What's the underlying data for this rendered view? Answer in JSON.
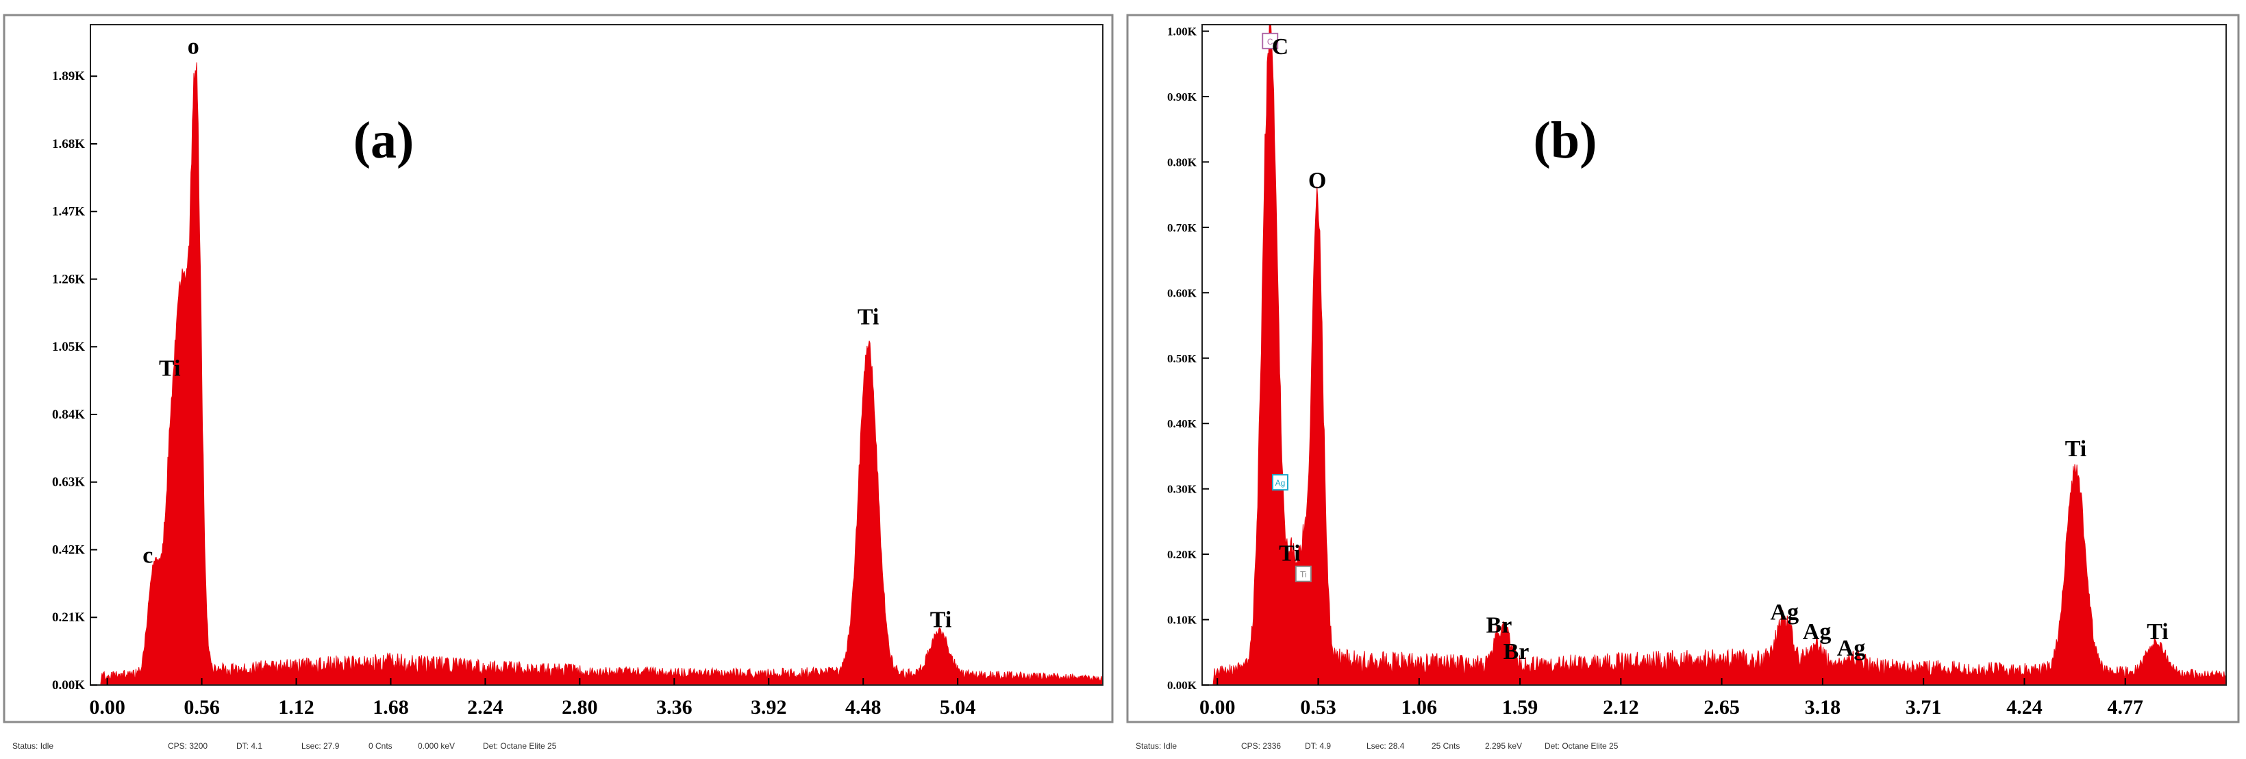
{
  "colors": {
    "spectrum": "#e8000b",
    "tick": "#000000",
    "frame": "#8a8a8a"
  },
  "chart_data": [
    {
      "type": "area",
      "panel_label": "(a)",
      "xlim": [
        -0.1,
        5.9
      ],
      "ylim": [
        0,
        2.05
      ],
      "x_ticks": [
        0.0,
        0.56,
        1.12,
        1.68,
        2.24,
        2.8,
        3.36,
        3.92,
        4.48,
        5.04
      ],
      "x_tick_labels": [
        "0.00",
        "0.56",
        "1.12",
        "1.68",
        "2.24",
        "2.80",
        "3.36",
        "3.92",
        "4.48",
        "5.04"
      ],
      "y_ticks": [
        0.0,
        0.21,
        0.42,
        0.63,
        0.84,
        1.05,
        1.26,
        1.47,
        1.68,
        1.89
      ],
      "y_tick_labels": [
        "0.00K",
        "0.21K",
        "0.42K",
        "0.63K",
        "0.84K",
        "1.05K",
        "1.26K",
        "1.47K",
        "1.68K",
        "1.89K"
      ],
      "baseline": 0.03,
      "continuum": [
        [
          0.05,
          0.03
        ],
        [
          0.6,
          0.045
        ],
        [
          1.2,
          0.06
        ],
        [
          1.7,
          0.07
        ],
        [
          2.2,
          0.055
        ],
        [
          3.0,
          0.04
        ],
        [
          3.9,
          0.035
        ],
        [
          4.3,
          0.04
        ],
        [
          5.3,
          0.03
        ],
        [
          5.9,
          0.02
        ]
      ],
      "peaks": [
        {
          "label": "C",
          "energy": 0.277,
          "height": 0.33,
          "width": 0.035
        },
        {
          "label": "Ti",
          "energy": 0.395,
          "height": 0.89,
          "width": 0.045
        },
        {
          "label": "",
          "energy": 0.455,
          "height": 0.8,
          "width": 0.03
        },
        {
          "label": "O",
          "energy": 0.525,
          "height": 1.89,
          "width": 0.03
        },
        {
          "label": "Ti",
          "energy": 4.51,
          "height": 1.05,
          "width": 0.055
        },
        {
          "label": "Ti",
          "energy": 4.93,
          "height": 0.14,
          "width": 0.055
        }
      ],
      "peak_labels": [
        {
          "text": "c",
          "x": 0.24,
          "y": 0.38
        },
        {
          "text": "Ti",
          "x": 0.37,
          "y": 0.96
        },
        {
          "text": "o",
          "x": 0.51,
          "y": 1.96
        },
        {
          "text": "Ti",
          "x": 4.51,
          "y": 1.12
        },
        {
          "text": "Ti",
          "x": 4.94,
          "y": 0.18
        }
      ],
      "status": {
        "state": "Status: Idle",
        "cps": "CPS: 3200",
        "dt": "DT: 4.1",
        "lsec": "Lsec: 27.9",
        "cnts": "0 Cnts",
        "kev": "0.000 keV",
        "det": "Det: Octane Elite 25"
      }
    },
    {
      "type": "area",
      "panel_label": "(b)",
      "xlim": [
        -0.08,
        5.3
      ],
      "ylim": [
        0,
        1.01
      ],
      "x_ticks": [
        0.0,
        0.53,
        1.06,
        1.59,
        2.12,
        2.65,
        3.18,
        3.71,
        4.24,
        4.77
      ],
      "x_tick_labels": [
        "0.00",
        "0.53",
        "1.06",
        "1.59",
        "2.12",
        "2.65",
        "3.18",
        "3.71",
        "4.24",
        "4.77"
      ],
      "y_ticks": [
        0.0,
        0.1,
        0.2,
        0.3,
        0.4,
        0.5,
        0.6,
        0.7,
        0.8,
        0.9,
        1.0
      ],
      "y_tick_labels": [
        "0.00K",
        "0.10K",
        "0.20K",
        "0.30K",
        "0.40K",
        "0.50K",
        "0.60K",
        "0.70K",
        "0.80K",
        "0.90K",
        "1.00K"
      ],
      "baseline": 0.02,
      "continuum": [
        [
          0.0,
          0.02
        ],
        [
          0.5,
          0.04
        ],
        [
          1.0,
          0.035
        ],
        [
          1.6,
          0.03
        ],
        [
          2.2,
          0.035
        ],
        [
          2.7,
          0.04
        ],
        [
          3.2,
          0.03
        ],
        [
          4.0,
          0.025
        ],
        [
          4.8,
          0.02
        ],
        [
          5.3,
          0.015
        ]
      ],
      "peaks": [
        {
          "label": "C",
          "energy": 0.277,
          "height": 1.01,
          "width": 0.04
        },
        {
          "label": "Ti",
          "energy": 0.395,
          "height": 0.16,
          "width": 0.03
        },
        {
          "label": "",
          "energy": 0.452,
          "height": 0.14,
          "width": 0.02
        },
        {
          "label": "O",
          "energy": 0.525,
          "height": 0.73,
          "width": 0.03
        },
        {
          "label": "Br",
          "energy": 1.48,
          "height": 0.05,
          "width": 0.03
        },
        {
          "label": "Br",
          "energy": 1.53,
          "height": 0.03,
          "width": 0.03
        },
        {
          "label": "Ag",
          "energy": 2.98,
          "height": 0.07,
          "width": 0.04
        },
        {
          "label": "Ag",
          "energy": 3.15,
          "height": 0.03,
          "width": 0.04
        },
        {
          "label": "Ag",
          "energy": 3.35,
          "height": 0.015,
          "width": 0.04
        },
        {
          "label": "Ti",
          "energy": 4.51,
          "height": 0.32,
          "width": 0.05
        },
        {
          "label": "Ti",
          "energy": 4.93,
          "height": 0.05,
          "width": 0.05
        }
      ],
      "peak_labels": [
        {
          "text": "C",
          "x": 0.33,
          "y": 0.965
        },
        {
          "text": "O",
          "x": 0.525,
          "y": 0.76
        },
        {
          "text": "Ti",
          "x": 0.38,
          "y": 0.19
        },
        {
          "text": "Br",
          "x": 1.48,
          "y": 0.08
        },
        {
          "text": "Br",
          "x": 1.57,
          "y": 0.04
        },
        {
          "text": "Ag",
          "x": 2.98,
          "y": 0.1
        },
        {
          "text": "Ag",
          "x": 3.15,
          "y": 0.07
        },
        {
          "text": "Ag",
          "x": 3.33,
          "y": 0.045
        },
        {
          "text": "Ti",
          "x": 4.51,
          "y": 0.35
        },
        {
          "text": "Ti",
          "x": 4.94,
          "y": 0.07
        }
      ],
      "marker_boxes": [
        {
          "text": "C",
          "x": 0.277,
          "y": 0.985,
          "color": "#b06aa8"
        },
        {
          "text": "Ag",
          "x": 0.33,
          "y": 0.31,
          "color": "#1aa7c9"
        },
        {
          "text": "Ti",
          "x": 0.452,
          "y": 0.17,
          "color": "#888888"
        }
      ],
      "status": {
        "state": "Status: Idle",
        "cps": "CPS: 2336",
        "dt": "DT: 4.9",
        "lsec": "Lsec: 28.4",
        "cnts": "25 Cnts",
        "kev": "2.295 keV",
        "det": "Det: Octane Elite 25"
      }
    }
  ]
}
